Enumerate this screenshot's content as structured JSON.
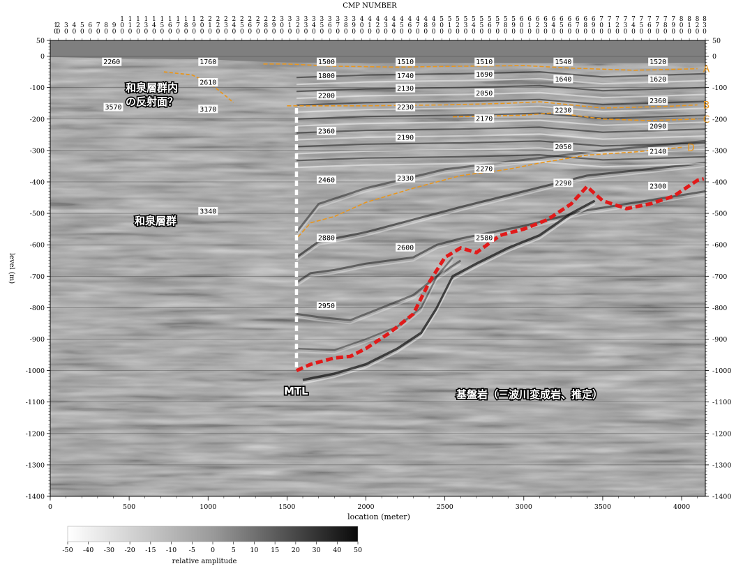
{
  "header": {
    "title": "CMP NUMBER"
  },
  "axes": {
    "x_label": "location (meter)",
    "y_label_left": "level (m)",
    "x_ticks": [
      "0",
      "500",
      "1000",
      "1500",
      "2000",
      "2500",
      "3000",
      "3500",
      "4000"
    ],
    "y_ticks": [
      "50",
      "0",
      "-100",
      "-200",
      "-300",
      "-400",
      "-500",
      "-600",
      "-700",
      "-800",
      "-900",
      "-1000",
      "-1100",
      "-1200",
      "-1300",
      "-1400"
    ],
    "x_range": [
      0,
      4150
    ],
    "y_range": [
      -1400,
      50
    ]
  },
  "cmp_numbers": [
    "1",
    "2",
    "3",
    "4",
    "5",
    "6",
    "7",
    "8",
    "9",
    "10",
    "11",
    "12",
    "13",
    "14",
    "15",
    "16",
    "17",
    "18",
    "19",
    "20",
    "21",
    "22",
    "23",
    "24",
    "25",
    "26",
    "27",
    "28",
    "29",
    "30",
    "31",
    "32",
    "33",
    "34",
    "35",
    "36",
    "37",
    "38",
    "39",
    "40",
    "41",
    "42",
    "43",
    "44",
    "45",
    "46",
    "47",
    "48",
    "49",
    "50",
    "51",
    "52",
    "53",
    "54",
    "55",
    "56",
    "57",
    "58",
    "59",
    "60",
    "61",
    "62",
    "63",
    "64",
    "65",
    "66",
    "67",
    "68",
    "69",
    "70",
    "71",
    "72",
    "73",
    "74",
    "75",
    "76",
    "77",
    "78",
    "79",
    "80",
    "81",
    "82",
    "83"
  ],
  "velocity_labels": [
    {
      "text": "2260",
      "x": 390,
      "y": -18
    },
    {
      "text": "1760",
      "x": 1000,
      "y": -18
    },
    {
      "text": "2610",
      "x": 1000,
      "y": -83
    },
    {
      "text": "3570",
      "x": 400,
      "y": -162
    },
    {
      "text": "3170",
      "x": 1000,
      "y": -168
    },
    {
      "text": "3340",
      "x": 1000,
      "y": -493
    },
    {
      "text": "1500",
      "x": 1750,
      "y": -18
    },
    {
      "text": "1800",
      "x": 1750,
      "y": -62
    },
    {
      "text": "2200",
      "x": 1750,
      "y": -125
    },
    {
      "text": "2360",
      "x": 1750,
      "y": -238
    },
    {
      "text": "2460",
      "x": 1750,
      "y": -393
    },
    {
      "text": "2880",
      "x": 1750,
      "y": -578
    },
    {
      "text": "2950",
      "x": 1750,
      "y": -794
    },
    {
      "text": "1510",
      "x": 2250,
      "y": -18
    },
    {
      "text": "1740",
      "x": 2250,
      "y": -62
    },
    {
      "text": "2130",
      "x": 2250,
      "y": -102
    },
    {
      "text": "2230",
      "x": 2250,
      "y": -162
    },
    {
      "text": "2190",
      "x": 2250,
      "y": -258
    },
    {
      "text": "2330",
      "x": 2250,
      "y": -388
    },
    {
      "text": "2600",
      "x": 2250,
      "y": -608
    },
    {
      "text": "1510",
      "x": 2750,
      "y": -18
    },
    {
      "text": "1690",
      "x": 2750,
      "y": -58
    },
    {
      "text": "2050",
      "x": 2750,
      "y": -117
    },
    {
      "text": "2170",
      "x": 2750,
      "y": -198
    },
    {
      "text": "2270",
      "x": 2750,
      "y": -358
    },
    {
      "text": "2580",
      "x": 2750,
      "y": -578
    },
    {
      "text": "1540",
      "x": 3250,
      "y": -18
    },
    {
      "text": "1640",
      "x": 3250,
      "y": -73
    },
    {
      "text": "2230",
      "x": 3250,
      "y": -172
    },
    {
      "text": "2050",
      "x": 3250,
      "y": -288
    },
    {
      "text": "2290",
      "x": 3250,
      "y": -403
    },
    {
      "text": "1520",
      "x": 3850,
      "y": -18
    },
    {
      "text": "1620",
      "x": 3850,
      "y": -73
    },
    {
      "text": "2360",
      "x": 3850,
      "y": -142
    },
    {
      "text": "2090",
      "x": 3850,
      "y": -223
    },
    {
      "text": "2140",
      "x": 3850,
      "y": -303
    },
    {
      "text": "2300",
      "x": 3850,
      "y": -413
    }
  ],
  "horizons": [
    {
      "label": "A",
      "points": [
        [
          1350,
          -25
        ],
        [
          1500,
          -25
        ],
        [
          1800,
          -32
        ],
        [
          2200,
          -35
        ],
        [
          2600,
          -32
        ],
        [
          3000,
          -30
        ],
        [
          3300,
          -38
        ],
        [
          3700,
          -45
        ],
        [
          4100,
          -40
        ]
      ]
    },
    {
      "label": "B",
      "points": [
        [
          1500,
          -158
        ],
        [
          2000,
          -158
        ],
        [
          2500,
          -155
        ],
        [
          2900,
          -150
        ],
        [
          3100,
          -145
        ],
        [
          3500,
          -165
        ],
        [
          3900,
          -160
        ],
        [
          4100,
          -155
        ]
      ]
    },
    {
      "label": "C",
      "points": [
        [
          2550,
          -193
        ],
        [
          3000,
          -188
        ],
        [
          3200,
          -180
        ],
        [
          3500,
          -200
        ],
        [
          3800,
          -205
        ],
        [
          4100,
          -200
        ]
      ]
    },
    {
      "label": "D",
      "points": [
        [
          1570,
          -575
        ],
        [
          1650,
          -530
        ],
        [
          1800,
          -510
        ],
        [
          2000,
          -465
        ],
        [
          2300,
          -420
        ],
        [
          2600,
          -380
        ],
        [
          2900,
          -360
        ],
        [
          3100,
          -340
        ],
        [
          3400,
          -315
        ],
        [
          3700,
          -305
        ],
        [
          4000,
          -290
        ]
      ]
    }
  ],
  "upper_reflector": {
    "points": [
      [
        720,
        -50
      ],
      [
        900,
        -60
      ],
      [
        1020,
        -90
      ],
      [
        1120,
        -130
      ],
      [
        1160,
        -148
      ]
    ]
  },
  "basement_top": {
    "points": [
      [
        1560,
        -1000
      ],
      [
        1650,
        -980
      ],
      [
        1800,
        -960
      ],
      [
        1900,
        -955
      ],
      [
        2000,
        -930
      ],
      [
        2150,
        -880
      ],
      [
        2300,
        -820
      ],
      [
        2400,
        -720
      ],
      [
        2500,
        -640
      ],
      [
        2600,
        -610
      ],
      [
        2700,
        -625
      ],
      [
        2850,
        -570
      ],
      [
        3000,
        -550
      ],
      [
        3150,
        -520
      ],
      [
        3300,
        -470
      ],
      [
        3400,
        -415
      ],
      [
        3500,
        -460
      ],
      [
        3650,
        -485
      ],
      [
        3800,
        -470
      ],
      [
        3950,
        -445
      ],
      [
        4100,
        -395
      ],
      [
        4140,
        -390
      ]
    ]
  },
  "mtl_line": {
    "x": 1560,
    "y_top": -165,
    "y_bottom": -995
  },
  "annotations": {
    "izumi_reflector": [
      "和泉層群内",
      "の反射面？"
    ],
    "izumi_group": "和泉層群",
    "mtl": "MTL",
    "basement": "基盤岩（三波川変成岩、推定）"
  },
  "colorbar": {
    "ticks": [
      "-50",
      "-40",
      "-30",
      "-20",
      "-15",
      "-10",
      "-5",
      "0",
      "5",
      "10",
      "15",
      "20",
      "30",
      "40",
      "50"
    ],
    "label": "relative amplitude"
  },
  "colors": {
    "horizon": "#e8961e",
    "basement": "#e11a1a",
    "mtl": "#ffffff",
    "background": "#9a9a9a",
    "topo": "#7f7f7f"
  }
}
